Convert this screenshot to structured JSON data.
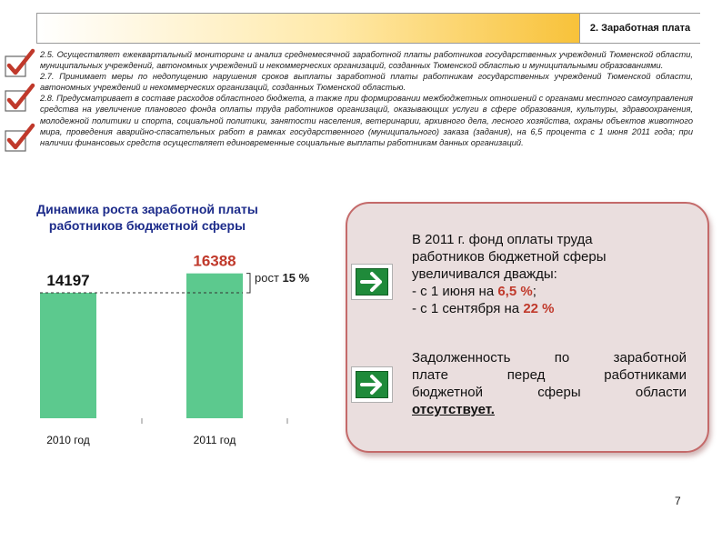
{
  "header": {
    "section_label": "2. Заработная плата"
  },
  "measures": [
    {
      "text": "2.5. Осуществляет ежеквартальный мониторинг и анализ среднемесячной заработной платы работников государственных учреждений Тюменской области, муниципальных учреждений, автономных учреждений и некоммерческих организаций, созданных Тюменской областью и муниципальными образованиями."
    },
    {
      "text": "2.7. Принимает меры по недопущению нарушения сроков выплаты заработной платы работникам государственных учреждений Тюменской области, автономных учреждений и некоммерческих организаций, созданных Тюменской областью."
    },
    {
      "text": "2.8. Предусматривает в составе расходов областного бюджета, а также при формировании межбюджетных отношений с органами местного самоуправления средства на увеличение планового фонда оплаты труда работников организаций, оказывающих услуги в сфере образования, культуры, здравоохранения, молодежной политики и спорта, социальной политики, занятости населения, ветеринарии, архивного дела, лесного хозяйства, охраны объектов животного мира, проведения аварийно-спасательных работ в рамках государственного (муниципального) заказа (задания), на 6,5 процента с 1 июня 2011 года; при наличии финансовых средств осуществляет единовременные социальные выплаты работникам данных организаций."
    }
  ],
  "chart_title_line1": "Динамика роста заработной платы",
  "chart_title_line2": "работников бюджетной сферы",
  "chart_data": {
    "type": "bar",
    "title": "Динамика роста заработной платы работников бюджетной сферы",
    "categories": [
      "2010 год",
      "2011 год"
    ],
    "values": [
      14197,
      16388
    ],
    "value_labels": [
      "14197",
      "16388"
    ],
    "ylim": [
      0,
      18000
    ],
    "grid": false,
    "annotation": {
      "prefix": "рост",
      "value": "15 %"
    },
    "colors": {
      "bar": "#5cc98e",
      "label_2010": "#111111",
      "label_2011": "#c0392b"
    }
  },
  "info": {
    "p1_line1": "В 2011 г. фонд оплаты труда",
    "p1_line2": "работников бюджетной сферы",
    "p1_line3": "увеличивался дважды:",
    "p1_item1_prefix": "- с 1 июня на ",
    "p1_item1_value": "6,5 %",
    "p1_item1_suffix": ";",
    "p1_item2_prefix": "- с 1 сентября на ",
    "p1_item2_value": "22 %",
    "p2_line1": "Задолженность по заработной",
    "p2_line2": "плате перед работниками",
    "p2_line3": "бюджетной сферы области",
    "p2_line4": "отсутствует."
  },
  "page_number": "7",
  "icons": {
    "check": "check-mark-icon",
    "arrow": "right-arrow-icon"
  },
  "colors": {
    "accent": "#c0392b",
    "green": "#1f8a3a",
    "title_blue": "#1c2b8a",
    "panel_bg": "#eadede"
  }
}
